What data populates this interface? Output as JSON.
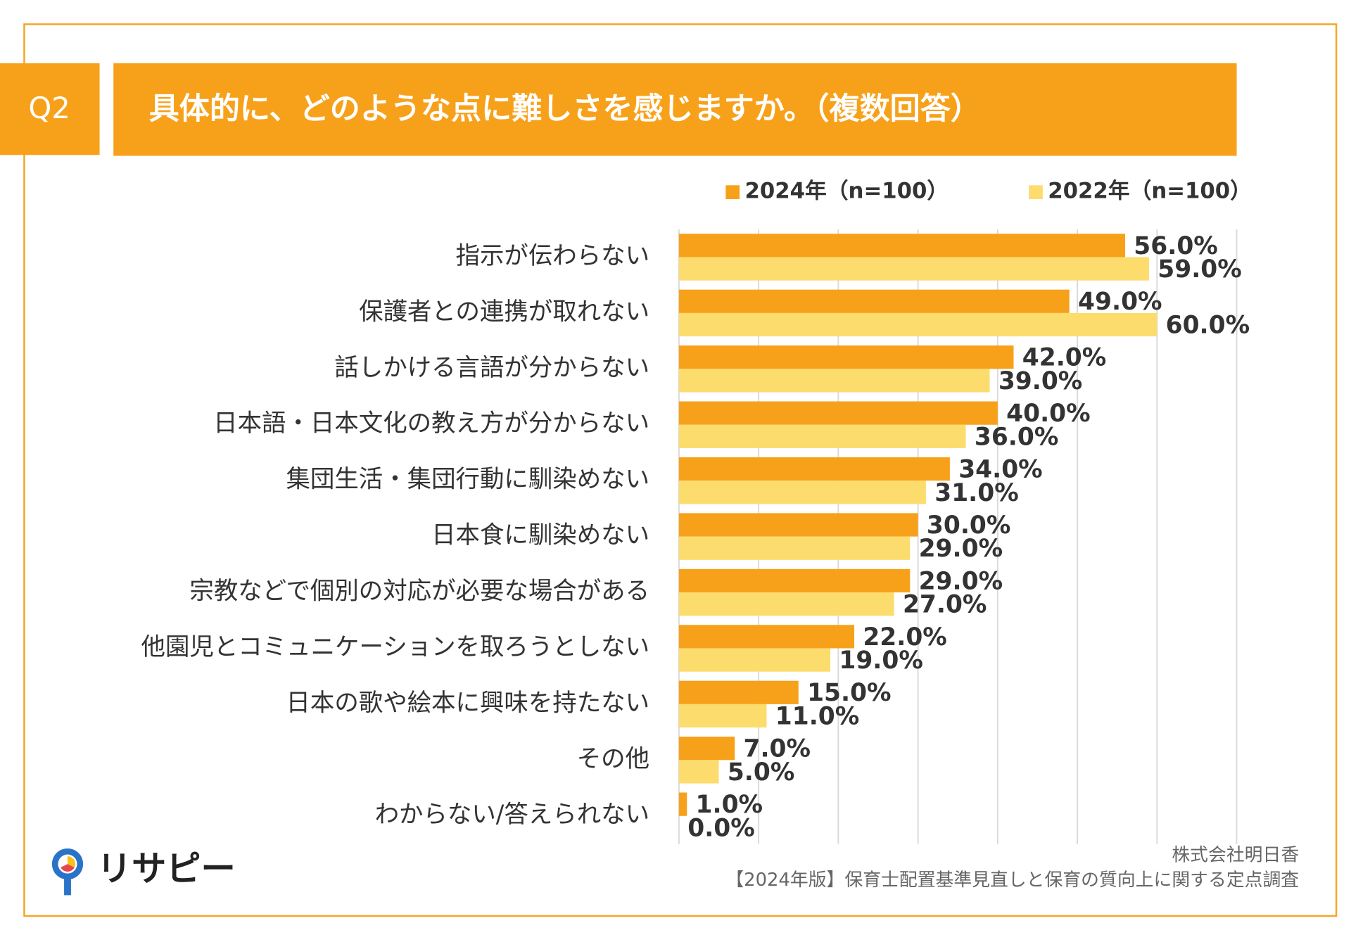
{
  "header": {
    "label": "Q2",
    "title": "具体的に、どのような点に難しさを感じますか。（複数回答）"
  },
  "chart_data": {
    "type": "bar",
    "orientation": "horizontal",
    "categories": [
      "指示が伝わらない",
      "保護者との連携が取れない",
      "話しかける言語が分からない",
      "日本語・日本文化の教え方が分からない",
      "集団生活・集団行動に馴染めない",
      "日本食に馴染めない",
      "宗教などで個別の対応が必要な場合がある",
      "他園児とコミュニケーションを取ろうとしない",
      "日本の歌や絵本に興味を持たない",
      "その他",
      "わからない/答えられない"
    ],
    "series": [
      {
        "name": "2024年（n=100）",
        "color": "#f7a11a",
        "values": [
          56,
          49,
          42,
          40,
          34,
          30,
          29,
          22,
          15,
          7,
          1
        ],
        "value_labels": [
          "56.0%",
          "49.0%",
          "42.0%",
          "40.0%",
          "34.0%",
          "30.0%",
          "29.0%",
          "22.0%",
          "15.0%",
          "7.0%",
          "1.0%"
        ]
      },
      {
        "name": "2022年（n=100）",
        "color": "#fddc6e",
        "values": [
          59,
          60,
          39,
          36,
          31,
          29,
          27,
          19,
          11,
          5,
          0
        ],
        "value_labels": [
          "59.0%",
          "60.0%",
          "39.0%",
          "36.0%",
          "31.0%",
          "29.0%",
          "27.0%",
          "19.0%",
          "11.0%",
          "5.0%",
          "0.0%"
        ]
      }
    ],
    "xlim": [
      0,
      70
    ],
    "xticks": [
      0,
      10,
      20,
      30,
      40,
      50,
      60,
      70
    ],
    "grid": true,
    "legend": "top"
  },
  "footer": {
    "company": "株式会社明日香",
    "source": "【2024年版】保育士配置基準見直しと保育の質向上に関する定点調査"
  },
  "logo": {
    "text": "リサピー"
  }
}
